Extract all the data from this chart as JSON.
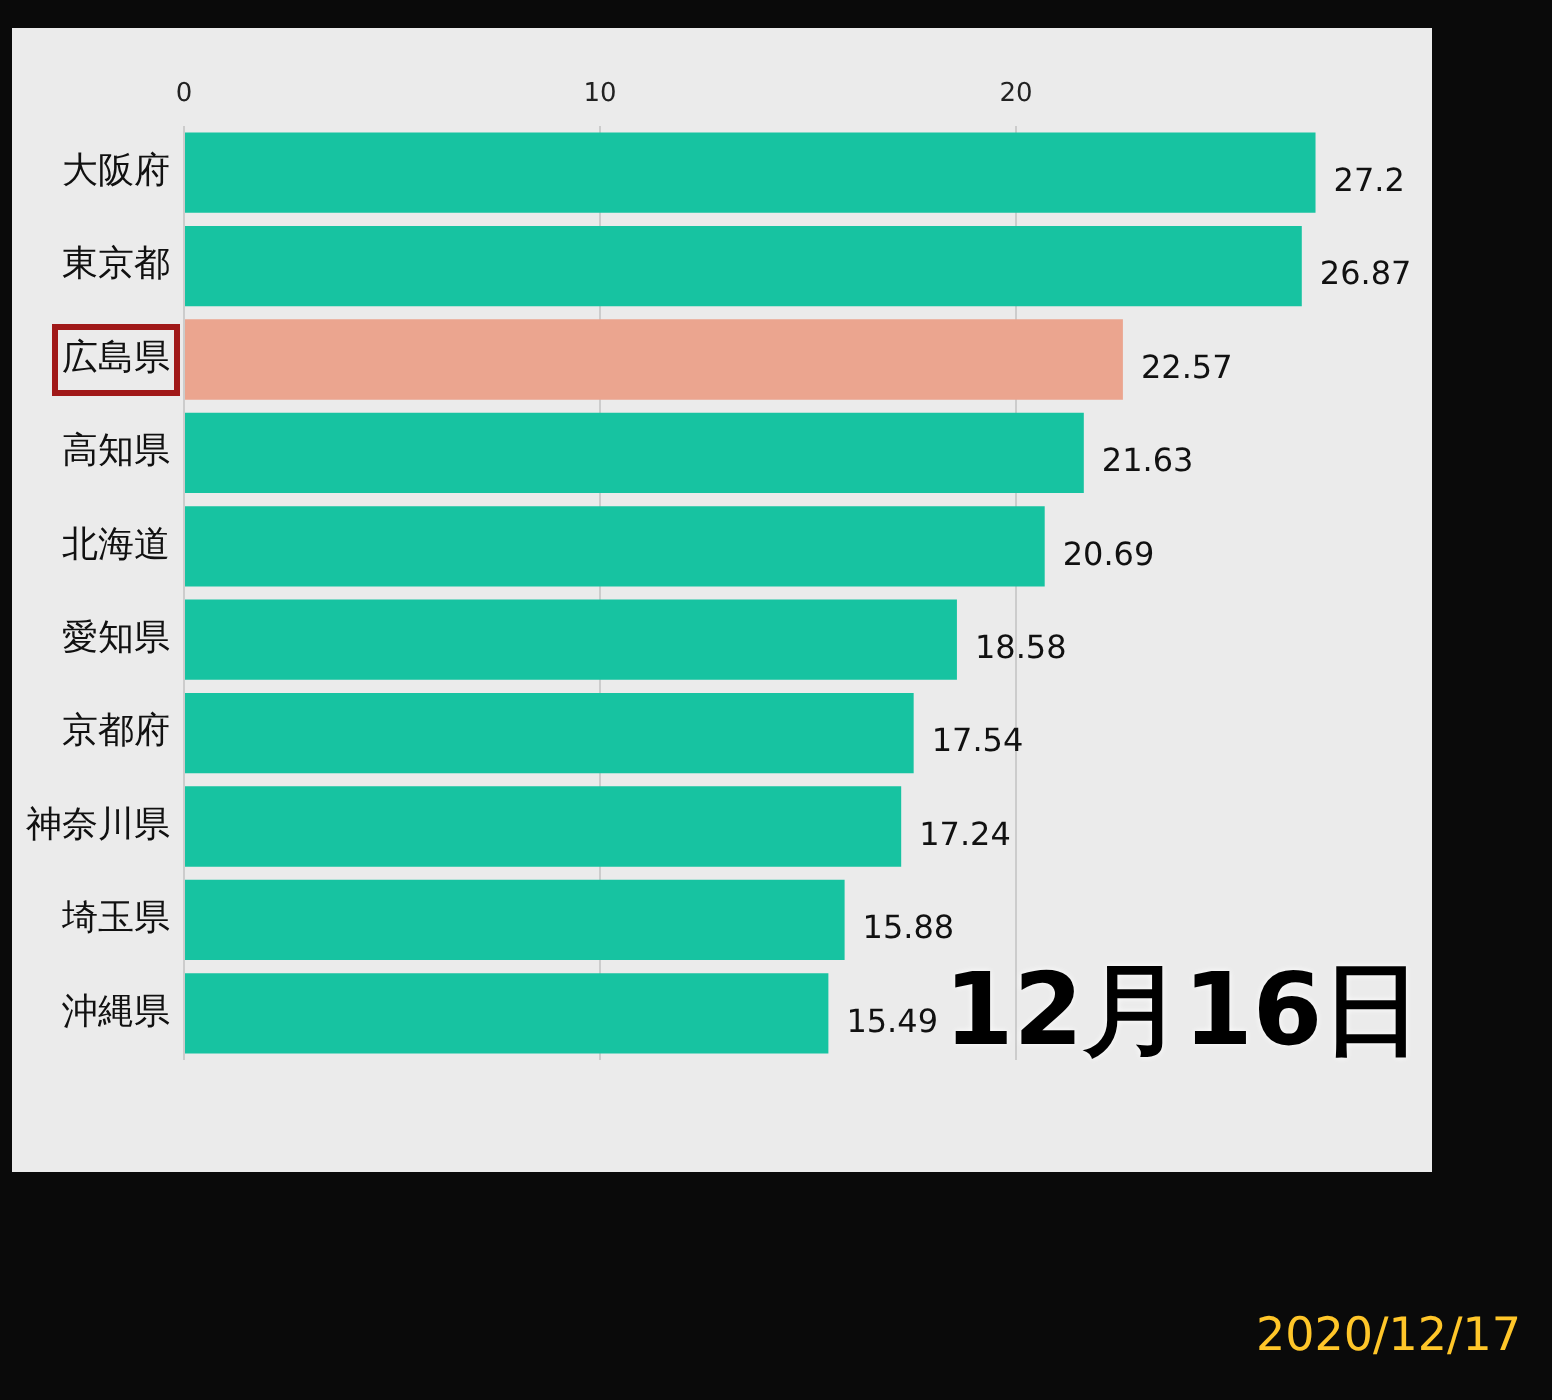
{
  "chart_data": {
    "type": "bar",
    "orientation": "horizontal",
    "categories": [
      "大阪府",
      "東京都",
      "広島県",
      "高知県",
      "北海道",
      "愛知県",
      "京都府",
      "神奈川県",
      "埼玉県",
      "沖縄県"
    ],
    "values": [
      27.2,
      26.87,
      22.57,
      21.63,
      20.69,
      18.58,
      17.54,
      17.24,
      15.88,
      15.49
    ],
    "colors": [
      "#17c3a1",
      "#17c3a1",
      "#eba58f",
      "#17c3a1",
      "#17c3a1",
      "#17c3a1",
      "#17c3a1",
      "#17c3a1",
      "#17c3a1",
      "#17c3a1"
    ],
    "xlim": [
      0,
      30
    ],
    "xticks": [
      0,
      10,
      20
    ],
    "grid": "x",
    "data_labels": true,
    "annotations": [
      "12月16日",
      "2020/12/17"
    ]
  }
}
